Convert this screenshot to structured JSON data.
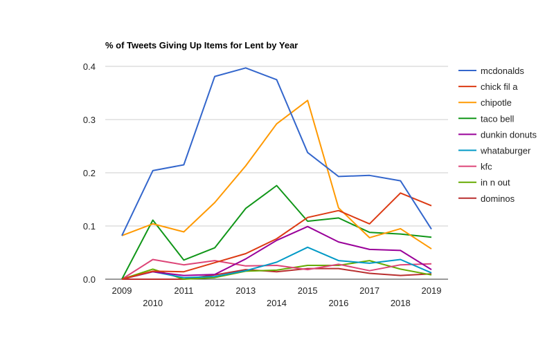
{
  "chart_data": {
    "type": "line",
    "title": "% of Tweets Giving Up Items for Lent by Year",
    "xlabel": "",
    "ylabel": "",
    "x": [
      "2009",
      "2010",
      "2011",
      "2012",
      "2013",
      "2014",
      "2015",
      "2016",
      "2017",
      "2018",
      "2019"
    ],
    "ylim": [
      0,
      0.4
    ],
    "y_ticks": [
      "0.0",
      "0.1",
      "0.2",
      "0.3",
      "0.4"
    ],
    "grid": true,
    "legend_position": "right",
    "series": [
      {
        "name": "mcdonalds",
        "color": "#3366cc",
        "values": [
          0.082,
          0.204,
          0.215,
          0.381,
          0.397,
          0.375,
          0.238,
          0.193,
          0.195,
          0.185,
          0.094
        ]
      },
      {
        "name": "chick fil a",
        "color": "#dc3912",
        "values": [
          0.0,
          0.015,
          0.014,
          0.031,
          0.048,
          0.076,
          0.116,
          0.129,
          0.104,
          0.162,
          0.138
        ]
      },
      {
        "name": "chipotle",
        "color": "#ff9900",
        "values": [
          0.082,
          0.104,
          0.089,
          0.144,
          0.213,
          0.292,
          0.336,
          0.134,
          0.078,
          0.095,
          0.057
        ]
      },
      {
        "name": "taco bell",
        "color": "#109618",
        "values": [
          0.0,
          0.111,
          0.036,
          0.059,
          0.133,
          0.176,
          0.109,
          0.115,
          0.088,
          0.085,
          0.079
        ]
      },
      {
        "name": "dunkin donuts",
        "color": "#990099",
        "values": [
          0.0,
          0.014,
          0.007,
          0.009,
          0.038,
          0.073,
          0.099,
          0.07,
          0.056,
          0.054,
          0.018
        ]
      },
      {
        "name": "whataburger",
        "color": "#0099c6",
        "values": [
          0.0,
          0.014,
          0.003,
          0.005,
          0.016,
          0.032,
          0.06,
          0.035,
          0.03,
          0.037,
          0.012
        ]
      },
      {
        "name": "kfc",
        "color": "#dd4477",
        "values": [
          0.0,
          0.037,
          0.027,
          0.035,
          0.025,
          0.026,
          0.018,
          0.028,
          0.016,
          0.027,
          0.029
        ]
      },
      {
        "name": "in n out",
        "color": "#66aa00",
        "values": [
          0.0,
          0.019,
          0.0,
          0.003,
          0.015,
          0.017,
          0.026,
          0.026,
          0.035,
          0.019,
          0.008
        ]
      },
      {
        "name": "dominos",
        "color": "#b82e2e",
        "values": [
          0.0,
          0.0,
          0.0,
          0.008,
          0.018,
          0.014,
          0.02,
          0.02,
          0.011,
          0.007,
          0.01
        ]
      }
    ]
  }
}
